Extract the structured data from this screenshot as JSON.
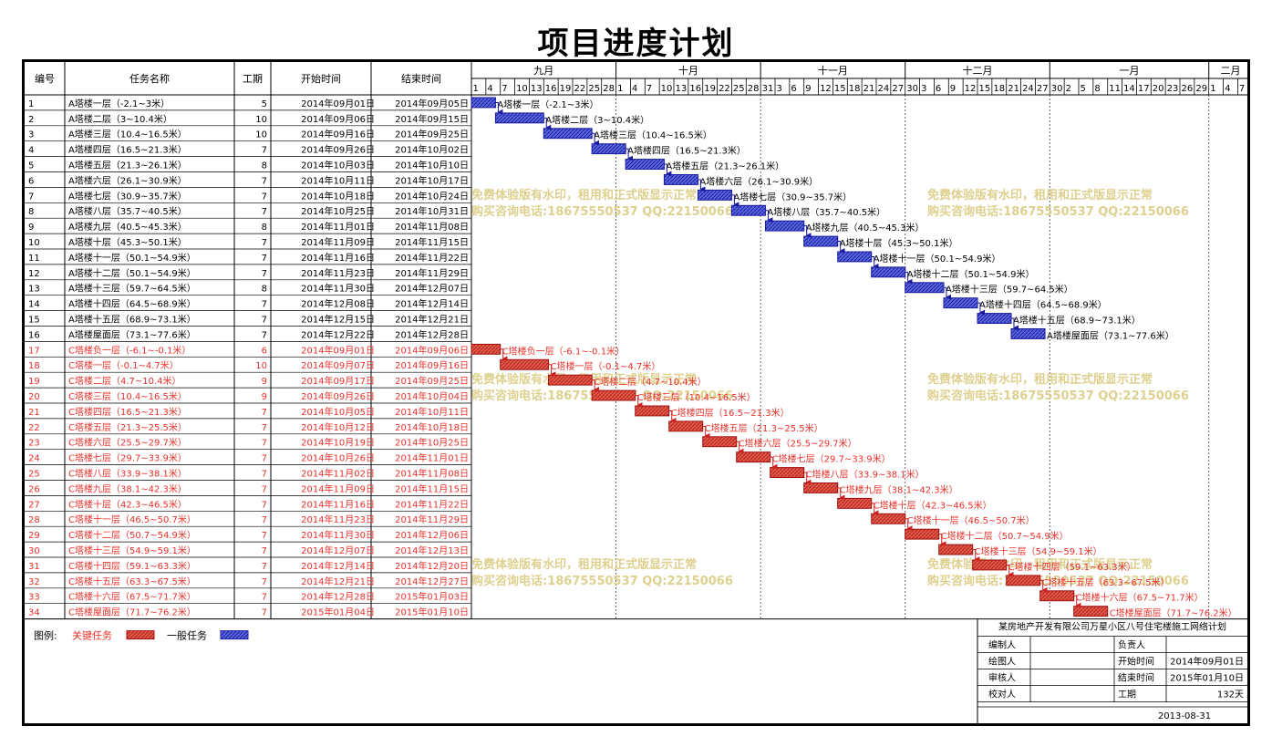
{
  "title": "项目进度计划",
  "columns": {
    "id": "编号",
    "name": "任务名称",
    "duration": "工期",
    "start": "开始时间",
    "end": "结束时间"
  },
  "months": [
    {
      "label": "九月",
      "days": [
        "1",
        "4",
        "7",
        "10",
        "13",
        "16",
        "19",
        "22",
        "25",
        "28"
      ]
    },
    {
      "label": "十月",
      "days": [
        "1",
        "4",
        "7",
        "10",
        "13",
        "16",
        "19",
        "22",
        "25",
        "28"
      ]
    },
    {
      "label": "十一月",
      "days": [
        "31",
        "3",
        "6",
        "9",
        "12",
        "15",
        "18",
        "21",
        "24",
        "27"
      ]
    },
    {
      "label": "十二月",
      "days": [
        "30",
        "3",
        "6",
        "9",
        "12",
        "15",
        "18",
        "21",
        "24",
        "27"
      ]
    },
    {
      "label": "一月",
      "days": [
        "30",
        "2",
        "5",
        "8",
        "11",
        "14",
        "17",
        "20",
        "23",
        "26",
        "29"
      ]
    },
    {
      "label": "二月",
      "days": [
        "1",
        "4",
        "7"
      ]
    }
  ],
  "watermark": {
    "line1": "免费体验版有水印，租用和正式版显示正常",
    "line2": "购买咨询电话:18675550537 QQ:22150066"
  },
  "legend": {
    "label": "图例:",
    "critical": "关键任务",
    "normal": "一般任务"
  },
  "colors": {
    "critical": "#e8302a",
    "critical_fill": "#e05040",
    "normal_fill": "#4a58d8",
    "normal_edge": "#1a1aa0",
    "watermark": "#d8c87a"
  },
  "info_table": {
    "company": "某房地产开发有限公司万星小区八号住宅楼施工网络计划",
    "prepared_by": "编制人",
    "owner": "负责人",
    "drawn_by": "绘图人",
    "start_label": "开始时间",
    "start_value": "2014年09月01日",
    "reviewed_by": "审核人",
    "end_label": "结束时间",
    "end_value": "2015年01月10日",
    "checked_by": "校对人",
    "duration_label": "工期",
    "duration_value": "132天",
    "date": "2013-08-31"
  },
  "chart_data": {
    "type": "gantt",
    "timeline_start": "2014-09-01",
    "timeline_end": "2015-02-08",
    "tasks": [
      {
        "id": "1",
        "name": "A塔楼一层（-2.1~3米）",
        "duration": "5",
        "start": "2014年09月01日",
        "end": "2014年09月05日",
        "critical": false
      },
      {
        "id": "2",
        "name": "A塔楼二层（3~10.4米）",
        "duration": "10",
        "start": "2014年09月06日",
        "end": "2014年09月15日",
        "critical": false
      },
      {
        "id": "3",
        "name": "A塔楼三层（10.4~16.5米）",
        "duration": "10",
        "start": "2014年09月16日",
        "end": "2014年09月25日",
        "critical": false
      },
      {
        "id": "4",
        "name": "A塔楼四层（16.5~21.3米）",
        "duration": "7",
        "start": "2014年09月26日",
        "end": "2014年10月02日",
        "critical": false
      },
      {
        "id": "5",
        "name": "A塔楼五层（21.3~26.1米）",
        "duration": "8",
        "start": "2014年10月03日",
        "end": "2014年10月10日",
        "critical": false
      },
      {
        "id": "6",
        "name": "A塔楼六层（26.1~30.9米）",
        "duration": "7",
        "start": "2014年10月11日",
        "end": "2014年10月17日",
        "critical": false
      },
      {
        "id": "7",
        "name": "A塔楼七层（30.9~35.7米）",
        "duration": "7",
        "start": "2014年10月18日",
        "end": "2014年10月24日",
        "critical": false
      },
      {
        "id": "8",
        "name": "A塔楼八层（35.7~40.5米）",
        "duration": "7",
        "start": "2014年10月25日",
        "end": "2014年10月31日",
        "critical": false
      },
      {
        "id": "9",
        "name": "A塔楼九层（40.5~45.3米）",
        "duration": "8",
        "start": "2014年11月01日",
        "end": "2014年11月08日",
        "critical": false
      },
      {
        "id": "10",
        "name": "A塔楼十层（45.3~50.1米）",
        "duration": "7",
        "start": "2014年11月09日",
        "end": "2014年11月15日",
        "critical": false
      },
      {
        "id": "11",
        "name": "A塔楼十一层（50.1~54.9米）",
        "duration": "7",
        "start": "2014年11月16日",
        "end": "2014年11月22日",
        "critical": false
      },
      {
        "id": "12",
        "name": "A塔楼十二层（50.1~54.9米）",
        "duration": "7",
        "start": "2014年11月23日",
        "end": "2014年11月29日",
        "critical": false
      },
      {
        "id": "13",
        "name": "A塔楼十三层（59.7~64.5米）",
        "duration": "8",
        "start": "2014年11月30日",
        "end": "2014年12月07日",
        "critical": false
      },
      {
        "id": "14",
        "name": "A塔楼十四层（64.5~68.9米）",
        "duration": "7",
        "start": "2014年12月08日",
        "end": "2014年12月14日",
        "critical": false
      },
      {
        "id": "15",
        "name": "A塔楼十五层（68.9~73.1米）",
        "duration": "7",
        "start": "2014年12月15日",
        "end": "2014年12月21日",
        "critical": false
      },
      {
        "id": "16",
        "name": "A塔楼屋面层（73.1~77.6米）",
        "duration": "7",
        "start": "2014年12月22日",
        "end": "2014年12月28日",
        "critical": false
      },
      {
        "id": "17",
        "name": "C塔楼负一层（-6.1~-0.1米）",
        "duration": "6",
        "start": "2014年09月01日",
        "end": "2014年09月06日",
        "critical": true
      },
      {
        "id": "18",
        "name": "C塔楼一层（-0.1~4.7米）",
        "duration": "10",
        "start": "2014年09月07日",
        "end": "2014年09月16日",
        "critical": true
      },
      {
        "id": "19",
        "name": "C塔楼二层（4.7~10.4米）",
        "duration": "9",
        "start": "2014年09月17日",
        "end": "2014年09月25日",
        "critical": true
      },
      {
        "id": "20",
        "name": "C塔楼三层（10.4~16.5米）",
        "duration": "9",
        "start": "2014年09月26日",
        "end": "2014年10月04日",
        "critical": true
      },
      {
        "id": "21",
        "name": "C塔楼四层（16.5~21.3米）",
        "duration": "7",
        "start": "2014年10月05日",
        "end": "2014年10月11日",
        "critical": true
      },
      {
        "id": "22",
        "name": "C塔楼五层（21.3~25.5米）",
        "duration": "7",
        "start": "2014年10月12日",
        "end": "2014年10月18日",
        "critical": true
      },
      {
        "id": "23",
        "name": "C塔楼六层（25.5~29.7米）",
        "duration": "7",
        "start": "2014年10月19日",
        "end": "2014年10月25日",
        "critical": true
      },
      {
        "id": "24",
        "name": "C塔楼七层（29.7~33.9米）",
        "duration": "7",
        "start": "2014年10月26日",
        "end": "2014年11月01日",
        "critical": true
      },
      {
        "id": "25",
        "name": "C塔楼八层（33.9~38.1米）",
        "duration": "7",
        "start": "2014年11月02日",
        "end": "2014年11月08日",
        "critical": true
      },
      {
        "id": "26",
        "name": "C塔楼九层（38.1~42.3米）",
        "duration": "7",
        "start": "2014年11月09日",
        "end": "2014年11月15日",
        "critical": true
      },
      {
        "id": "27",
        "name": "C塔楼十层（42.3~46.5米）",
        "duration": "7",
        "start": "2014年11月16日",
        "end": "2014年11月22日",
        "critical": true
      },
      {
        "id": "28",
        "name": "C塔楼十一层（46.5~50.7米）",
        "duration": "7",
        "start": "2014年11月23日",
        "end": "2014年11月29日",
        "critical": true
      },
      {
        "id": "29",
        "name": "C塔楼十二层（50.7~54.9米）",
        "duration": "7",
        "start": "2014年11月30日",
        "end": "2014年12月06日",
        "critical": true
      },
      {
        "id": "30",
        "name": "C塔楼十三层（54.9~59.1米）",
        "duration": "7",
        "start": "2014年12月07日",
        "end": "2014年12月13日",
        "critical": true
      },
      {
        "id": "31",
        "name": "C塔楼十四层（59.1~63.3米）",
        "duration": "7",
        "start": "2014年12月14日",
        "end": "2014年12月20日",
        "critical": true
      },
      {
        "id": "32",
        "name": "C塔楼十五层（63.3~67.5米）",
        "duration": "7",
        "start": "2014年12月21日",
        "end": "2014年12月27日",
        "critical": true
      },
      {
        "id": "33",
        "name": "C塔楼十六层（67.5~71.7米）",
        "duration": "7",
        "start": "2014年12月28日",
        "end": "2015年01月03日",
        "critical": true
      },
      {
        "id": "34",
        "name": "C塔楼屋面层（71.7~76.2米）",
        "duration": "7",
        "start": "2015年01月04日",
        "end": "2015年01月10日",
        "critical": true
      }
    ]
  }
}
